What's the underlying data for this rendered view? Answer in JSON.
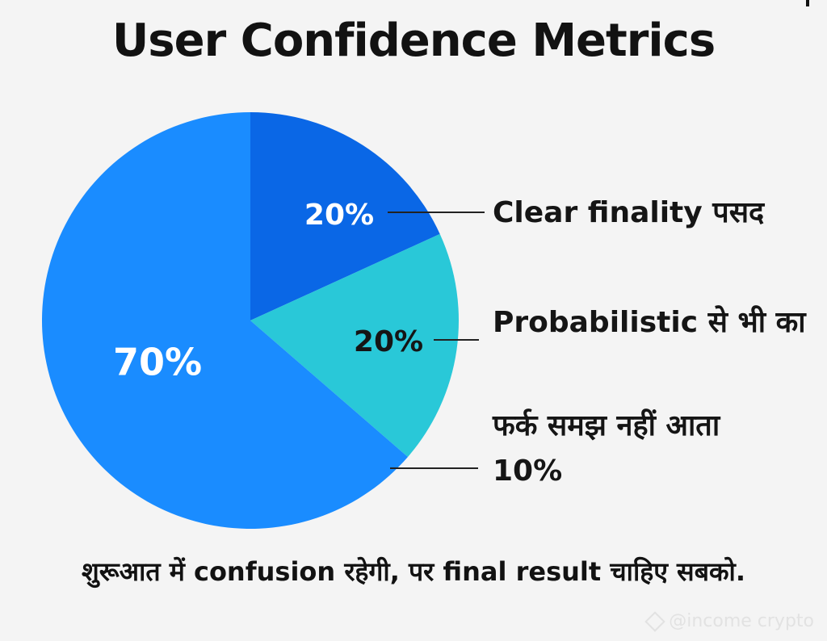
{
  "chart_data": {
    "type": "pie",
    "title": "User Confidence Metrics",
    "slices": [
      {
        "label": "Clear finality पसद",
        "value": 20,
        "value_label": "20%",
        "color": "#0a67e6",
        "label_color": "#ffffff"
      },
      {
        "label": "Probabilistic से भी का",
        "value": 20,
        "value_label": "20%",
        "color": "#29c8d8",
        "label_color": "#151515"
      },
      {
        "label": "फर्क समझ नहीं आता",
        "value": 70,
        "value_label": "70%",
        "color": "#1a8cff",
        "label_color": "#ffffff"
      }
    ],
    "extra_label": "10%",
    "legend_placement": "right"
  },
  "caption": "शुरूआत में confusion रहेगी, पर final result चाहिए सबको.",
  "watermark": "@income crypto"
}
